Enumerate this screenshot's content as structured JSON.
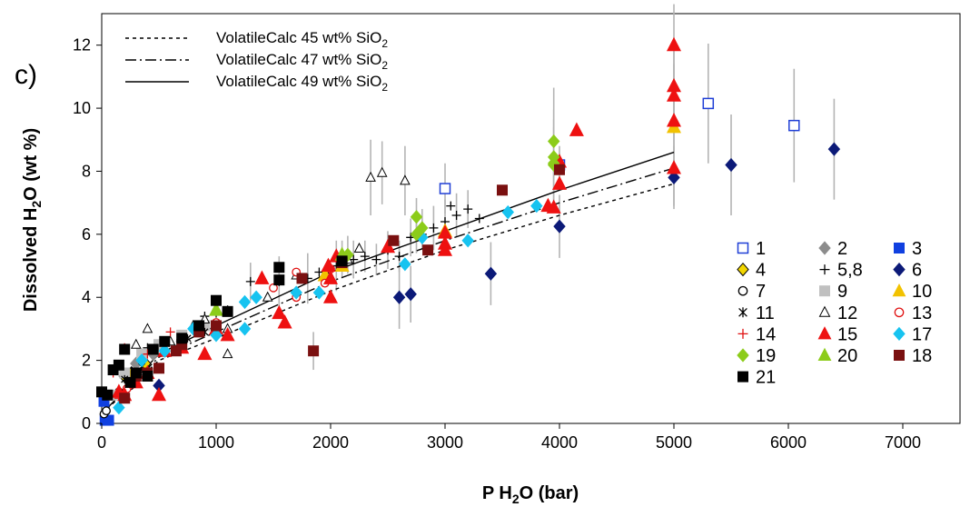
{
  "chart_data": {
    "type": "scatter",
    "panel_label": "c)",
    "xlabel": {
      "pre": "P H",
      "sub": "2",
      "post": "O (bar)"
    },
    "ylabel": {
      "pre": "Dissolved H",
      "sub": "2",
      "post": "O (wt %)"
    },
    "xlim": [
      0,
      7500
    ],
    "ylim": [
      0,
      13
    ],
    "x_ticks": [
      0,
      1000,
      2000,
      3000,
      4000,
      5000,
      6000,
      7000
    ],
    "y_ticks": [
      0,
      2,
      4,
      6,
      8,
      10,
      12
    ],
    "grid": false,
    "models": [
      {
        "pre": "VolatileCalc 45 wt% SiO",
        "sub": "2",
        "dash": "4,4",
        "x": [
          0,
          500,
          1000,
          2000,
          3000,
          4000,
          5000
        ],
        "y": [
          0.3,
          2.0,
          2.7,
          4.2,
          5.5,
          6.6,
          7.6
        ]
      },
      {
        "pre": "VolatileCalc 47 wt% SiO",
        "sub": "2",
        "dash": "12,4,2,4",
        "x": [
          0,
          500,
          1000,
          2000,
          3000,
          4000,
          5000
        ],
        "y": [
          0.3,
          2.1,
          2.9,
          4.5,
          5.8,
          7.0,
          8.1
        ]
      },
      {
        "pre": "VolatileCalc 49 wt% SiO",
        "sub": "2",
        "dash": "",
        "x": [
          0,
          500,
          1000,
          2000,
          3000,
          4000,
          5000
        ],
        "y": [
          0.3,
          2.2,
          3.1,
          4.8,
          6.1,
          7.4,
          8.6
        ]
      }
    ],
    "series": [
      {
        "name": "1",
        "marker": "square-open",
        "color": "#1f3fd6",
        "points": [
          [
            3000,
            7.45,
            0.8
          ],
          [
            5300,
            10.15,
            1.9
          ],
          [
            6050,
            9.45,
            1.8
          ],
          [
            4000,
            8.2,
            0.6
          ]
        ]
      },
      {
        "name": "2",
        "marker": "diamond",
        "color": "#8c8c8c",
        "points": [
          [
            300,
            1.9,
            0
          ],
          [
            450,
            2.2,
            0
          ],
          [
            700,
            2.6,
            0
          ],
          [
            850,
            3.0,
            0
          ]
        ]
      },
      {
        "name": "3",
        "marker": "square",
        "color": "#1040e0",
        "points": [
          [
            30,
            0.1,
            0
          ],
          [
            60,
            0.1,
            0
          ],
          [
            20,
            0.7,
            0
          ]
        ]
      },
      {
        "name": "4",
        "marker": "diamond",
        "color": "#f2d600",
        "stroke": "#000",
        "points": [
          [
            200,
            1.5,
            0
          ],
          [
            260,
            1.6,
            0
          ],
          [
            380,
            1.9,
            0
          ]
        ]
      },
      {
        "name": "5,8",
        "marker": "plus",
        "color": "#000",
        "points": [
          [
            1300,
            4.5,
            0.6
          ],
          [
            1550,
            4.5,
            0.8
          ],
          [
            1800,
            4.6,
            0.8
          ],
          [
            1900,
            4.8,
            0
          ],
          [
            2050,
            5.0,
            0.8
          ],
          [
            2200,
            5.2,
            0.6
          ],
          [
            2300,
            5.3,
            0.5
          ],
          [
            2400,
            5.2,
            0.5
          ],
          [
            2500,
            5.5,
            0.6
          ],
          [
            2600,
            5.3,
            0.5
          ],
          [
            2700,
            5.9,
            0.6
          ],
          [
            2800,
            6.0,
            0.5
          ],
          [
            2900,
            6.2,
            0.7
          ],
          [
            3000,
            6.4,
            0.7
          ],
          [
            3100,
            6.6,
            0.7
          ],
          [
            3200,
            6.8,
            0.6
          ],
          [
            3050,
            6.9,
            0
          ],
          [
            3300,
            6.5,
            0
          ],
          [
            900,
            3.4,
            0
          ],
          [
            1000,
            3.5,
            0
          ],
          [
            400,
            2.4,
            0
          ],
          [
            1100,
            3.6,
            0
          ]
        ]
      },
      {
        "name": "6",
        "marker": "diamond",
        "color": "#0c1a78",
        "points": [
          [
            4000,
            6.25,
            1.0
          ],
          [
            5000,
            7.8,
            1.0
          ],
          [
            5500,
            8.2,
            1.6
          ],
          [
            6400,
            8.7,
            1.6
          ],
          [
            3400,
            4.75,
            1.0
          ],
          [
            2600,
            4.0,
            1.0
          ],
          [
            2700,
            4.1,
            0.9
          ],
          [
            500,
            1.2,
            0
          ]
        ]
      },
      {
        "name": "7",
        "marker": "circle-open",
        "color": "#000",
        "points": [
          [
            20,
            0.3,
            0
          ],
          [
            40,
            0.4,
            0
          ],
          [
            150,
            1.0,
            0
          ],
          [
            250,
            1.2,
            0
          ]
        ]
      },
      {
        "name": "9",
        "marker": "square",
        "color": "#c0c0c0",
        "points": [
          [
            100,
            0.9,
            0
          ],
          [
            200,
            1.6,
            0
          ],
          [
            350,
            2.2,
            0
          ],
          [
            500,
            2.5,
            0
          ],
          [
            700,
            2.8,
            0
          ],
          [
            900,
            3.1,
            0
          ]
        ]
      },
      {
        "name": "10",
        "marker": "triangle",
        "color": "#f2c200",
        "points": [
          [
            1950,
            4.7,
            0
          ],
          [
            2100,
            5.0,
            0
          ],
          [
            3000,
            6.1,
            0
          ],
          [
            5000,
            9.4,
            0
          ]
        ]
      },
      {
        "name": "11",
        "marker": "star",
        "color": "#000",
        "points": [
          [
            200,
            1.4,
            0
          ],
          [
            350,
            1.8,
            0
          ],
          [
            550,
            2.3,
            0
          ],
          [
            750,
            2.7,
            0
          ],
          [
            900,
            2.9,
            0
          ]
        ]
      },
      {
        "name": "12",
        "marker": "triangle-open",
        "color": "#000",
        "points": [
          [
            400,
            3.0,
            0
          ],
          [
            600,
            2.6,
            0
          ],
          [
            900,
            3.3,
            0
          ],
          [
            1100,
            3.0,
            0
          ],
          [
            1100,
            2.2,
            0
          ],
          [
            1450,
            4.0,
            0
          ],
          [
            1700,
            4.7,
            0
          ],
          [
            2150,
            5.2,
            0
          ],
          [
            2250,
            5.55,
            0
          ],
          [
            2350,
            7.8,
            1.2
          ],
          [
            2450,
            7.95,
            1.0
          ],
          [
            2650,
            7.7,
            1.1
          ],
          [
            300,
            2.5,
            0
          ],
          [
            800,
            3.1,
            0
          ]
        ]
      },
      {
        "name": "13",
        "marker": "circle-open",
        "color": "#e01010",
        "points": [
          [
            1000,
            3.2,
            0
          ],
          [
            1500,
            4.3,
            0
          ],
          [
            1700,
            4.8,
            0
          ],
          [
            1700,
            4.0,
            0
          ],
          [
            1950,
            4.45,
            0
          ],
          [
            2000,
            4.9,
            0
          ],
          [
            300,
            1.5,
            0
          ],
          [
            700,
            2.5,
            0
          ],
          [
            220,
            1.1,
            0
          ]
        ]
      },
      {
        "name": "14",
        "marker": "plus",
        "color": "#e01010",
        "points": [
          [
            100,
            1.6,
            0
          ],
          [
            200,
            2.4,
            0
          ],
          [
            400,
            2.2,
            0
          ],
          [
            600,
            2.9,
            0
          ],
          [
            150,
            0.8,
            0
          ]
        ]
      },
      {
        "name": "15",
        "marker": "triangle",
        "color": "#ee1111",
        "points": [
          [
            150,
            1.0,
            0
          ],
          [
            200,
            0.9,
            0
          ],
          [
            300,
            1.3,
            0
          ],
          [
            400,
            1.6,
            0
          ],
          [
            500,
            0.9,
            0
          ],
          [
            550,
            2.3,
            0
          ],
          [
            700,
            2.4,
            0
          ],
          [
            900,
            2.2,
            0
          ],
          [
            1000,
            3.0,
            0
          ],
          [
            1100,
            2.8,
            0
          ],
          [
            1400,
            4.6,
            0
          ],
          [
            1550,
            3.5,
            0
          ],
          [
            1600,
            3.2,
            0
          ],
          [
            1980,
            5.0,
            0
          ],
          [
            2000,
            4.6,
            0
          ],
          [
            2000,
            4.0,
            0
          ],
          [
            2050,
            5.3,
            0
          ],
          [
            2500,
            5.6,
            0
          ],
          [
            3000,
            6.05,
            0
          ],
          [
            3000,
            5.7,
            0
          ],
          [
            3000,
            5.5,
            0
          ],
          [
            3900,
            6.9,
            0
          ],
          [
            3950,
            6.85,
            0
          ],
          [
            4000,
            8.3,
            0
          ],
          [
            4000,
            7.6,
            0
          ],
          [
            4150,
            9.3,
            0
          ],
          [
            5000,
            12.0,
            1.3
          ],
          [
            5000,
            10.7,
            1.2
          ],
          [
            5000,
            10.4,
            1.0
          ],
          [
            5000,
            9.6,
            1.0
          ],
          [
            5000,
            8.1,
            1.2
          ]
        ]
      },
      {
        "name": "17",
        "marker": "diamond",
        "color": "#17c3f0",
        "points": [
          [
            150,
            0.5,
            0
          ],
          [
            350,
            2.0,
            0
          ],
          [
            550,
            2.3,
            0
          ],
          [
            800,
            3.0,
            0
          ],
          [
            1000,
            2.8,
            0
          ],
          [
            1250,
            3.0,
            0
          ],
          [
            1250,
            3.85,
            0
          ],
          [
            1350,
            4.0,
            0
          ],
          [
            1700,
            4.15,
            0
          ],
          [
            1900,
            4.15,
            0
          ],
          [
            2650,
            5.05,
            0
          ],
          [
            3200,
            5.8,
            0
          ],
          [
            3550,
            6.7,
            0
          ],
          [
            3800,
            6.9,
            0
          ],
          [
            2800,
            5.9,
            0
          ]
        ]
      },
      {
        "name": "19",
        "marker": "diamond",
        "color": "#8ccc1a",
        "points": [
          [
            2100,
            5.2,
            0.6
          ],
          [
            2150,
            5.35,
            0.6
          ],
          [
            2750,
            6.55,
            0.6
          ],
          [
            2750,
            6.0,
            0.6
          ],
          [
            2800,
            6.2,
            0.6
          ],
          [
            3950,
            8.95,
            1.7
          ],
          [
            3950,
            8.45,
            1.5
          ],
          [
            3950,
            8.25,
            1.4
          ],
          [
            3950,
            8.2,
            1.2
          ]
        ]
      },
      {
        "name": "20",
        "marker": "triangle",
        "color": "#8ccc1a",
        "points": [
          [
            1000,
            3.6,
            0
          ],
          [
            2100,
            5.35,
            0
          ]
        ]
      },
      {
        "name": "18",
        "marker": "square",
        "color": "#7a1010",
        "points": [
          [
            200,
            0.8,
            0
          ],
          [
            300,
            1.5,
            0
          ],
          [
            400,
            1.6,
            0
          ],
          [
            500,
            1.75,
            0
          ],
          [
            650,
            2.3,
            0
          ],
          [
            700,
            2.5,
            0
          ],
          [
            850,
            2.9,
            0
          ],
          [
            1000,
            3.1,
            0
          ],
          [
            1750,
            4.6,
            0
          ],
          [
            1850,
            2.3,
            0.6
          ],
          [
            2100,
            5.1,
            0
          ],
          [
            2550,
            5.8,
            0
          ],
          [
            2850,
            5.5,
            0
          ],
          [
            3500,
            7.4,
            0
          ],
          [
            4000,
            8.05,
            0
          ]
        ]
      },
      {
        "name": "21",
        "marker": "square",
        "color": "#000000",
        "points": [
          [
            0,
            1.0,
            0
          ],
          [
            50,
            0.9,
            0
          ],
          [
            100,
            1.7,
            0
          ],
          [
            150,
            1.85,
            0
          ],
          [
            200,
            2.35,
            0
          ],
          [
            300,
            1.6,
            0
          ],
          [
            450,
            2.35,
            0
          ],
          [
            550,
            2.6,
            0
          ],
          [
            700,
            2.7,
            0
          ],
          [
            850,
            3.1,
            0
          ],
          [
            1000,
            3.9,
            0
          ],
          [
            1100,
            3.55,
            0
          ],
          [
            1550,
            4.95,
            0
          ],
          [
            1550,
            4.55,
            0
          ],
          [
            2100,
            5.15,
            0
          ],
          [
            400,
            1.5,
            0
          ],
          [
            250,
            1.3,
            0
          ]
        ]
      }
    ],
    "key_order": [
      [
        "1",
        "2",
        "3"
      ],
      [
        "4",
        "5,8",
        "6"
      ],
      [
        "7",
        "9",
        "10"
      ],
      [
        "11",
        "12",
        "13"
      ],
      [
        "14",
        "15",
        "17"
      ],
      [
        "19",
        "20",
        "18"
      ],
      [
        "21"
      ]
    ]
  }
}
